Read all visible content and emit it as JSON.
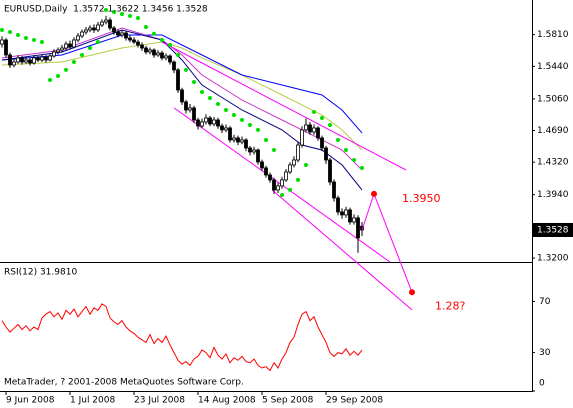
{
  "chart_data": {
    "type": "candlestick",
    "title": "EURUSD,Daily  1.3572 1.3622 1.3456 1.3528",
    "x": [
      0,
      1,
      2,
      3,
      4,
      5,
      6,
      7,
      8,
      9,
      10,
      11,
      12,
      13,
      14,
      15,
      16,
      17,
      18,
      19,
      20,
      21,
      22,
      23,
      24,
      25,
      26,
      27,
      28,
      29,
      30,
      31,
      32,
      33,
      34,
      35,
      36,
      37,
      38,
      39,
      40,
      41,
      42,
      43,
      44,
      45,
      46,
      47,
      48,
      49,
      50,
      51,
      52,
      53,
      54,
      55,
      56,
      57,
      58,
      59,
      60,
      61,
      62,
      63,
      64,
      65,
      66,
      67,
      68,
      69,
      70,
      71,
      72,
      73,
      74,
      75,
      76,
      77,
      78,
      79,
      80,
      81,
      82,
      83,
      84,
      85,
      86,
      87,
      88,
      89,
      90
    ],
    "open": [
      1.57,
      1.5748,
      1.5573,
      1.5456,
      1.5491,
      1.5538,
      1.5491,
      1.5514,
      1.5479,
      1.5538,
      1.5514,
      1.5549,
      1.5514,
      1.5561,
      1.5608,
      1.5631,
      1.5654,
      1.5701,
      1.5666,
      1.5748,
      1.5795,
      1.5841,
      1.5865,
      1.5888,
      1.5865,
      1.5923,
      1.5958,
      1.5981,
      1.5888,
      1.5841,
      1.5806,
      1.583,
      1.5771,
      1.5748,
      1.5724,
      1.5689,
      1.5654,
      1.5608,
      1.5631,
      1.5573,
      1.5596,
      1.5538,
      1.5561,
      1.5491,
      1.5398,
      1.5164,
      1.5024,
      1.493,
      1.4954,
      1.4813,
      1.4743,
      1.479,
      1.4837,
      1.4767,
      1.4813,
      1.4743,
      1.4697,
      1.472,
      1.458,
      1.4603,
      1.4556,
      1.458,
      1.4486,
      1.444,
      1.4463,
      1.4323,
      1.4253,
      1.4171,
      1.4113,
      1.3996,
      1.4043,
      1.4113,
      1.4206,
      1.4288,
      1.4346,
      1.4521,
      1.4697,
      1.4755,
      1.4673,
      1.472,
      1.4603,
      1.4486,
      1.4346,
      1.4089,
      1.3902,
      1.3739,
      1.3704,
      1.3762,
      1.3622,
      1.3669,
      1.3572
    ],
    "high": [
      1.579,
      1.577,
      1.56,
      1.553,
      1.557,
      1.556,
      1.555,
      1.554,
      1.557,
      1.556,
      1.558,
      1.557,
      1.559,
      1.564,
      1.566,
      1.569,
      1.573,
      1.574,
      1.578,
      1.583,
      1.587,
      1.59,
      1.592,
      1.593,
      1.596,
      1.599,
      1.603,
      1.601,
      1.591,
      1.587,
      1.586,
      1.585,
      1.58,
      1.578,
      1.575,
      1.572,
      1.568,
      1.566,
      1.565,
      1.563,
      1.562,
      1.559,
      1.558,
      1.551,
      1.542,
      1.519,
      1.505,
      1.5,
      1.498,
      1.484,
      1.483,
      1.488,
      1.486,
      1.485,
      1.484,
      1.477,
      1.476,
      1.474,
      1.464,
      1.463,
      1.462,
      1.46,
      1.451,
      1.45,
      1.448,
      1.435,
      1.428,
      1.42,
      1.414,
      1.408,
      1.415,
      1.424,
      1.432,
      1.439,
      1.456,
      1.474,
      1.483,
      1.479,
      1.476,
      1.474,
      1.463,
      1.451,
      1.437,
      1.412,
      1.393,
      1.378,
      1.38,
      1.379,
      1.371,
      1.37,
      1.3622
    ],
    "low": [
      1.566,
      1.554,
      1.542,
      1.543,
      1.547,
      1.546,
      1.547,
      1.545,
      1.546,
      1.549,
      1.549,
      1.548,
      1.55,
      1.554,
      1.558,
      1.56,
      1.563,
      1.564,
      1.565,
      1.572,
      1.577,
      1.581,
      1.584,
      1.583,
      1.584,
      1.59,
      1.593,
      1.586,
      1.581,
      1.578,
      1.578,
      1.574,
      1.572,
      1.57,
      1.566,
      1.562,
      1.558,
      1.558,
      1.554,
      1.555,
      1.551,
      1.551,
      1.546,
      1.536,
      1.513,
      1.499,
      1.489,
      1.49,
      1.478,
      1.47,
      1.472,
      1.476,
      1.474,
      1.474,
      1.471,
      1.466,
      1.467,
      1.455,
      1.455,
      1.452,
      1.453,
      1.445,
      1.44,
      1.441,
      1.429,
      1.422,
      1.414,
      1.408,
      1.395,
      1.396,
      1.401,
      1.409,
      1.418,
      1.426,
      1.432,
      1.449,
      1.467,
      1.464,
      1.464,
      1.457,
      1.445,
      1.43,
      1.405,
      1.386,
      1.37,
      1.366,
      1.367,
      1.359,
      1.359,
      1.326,
      1.3456
    ],
    "close": [
      1.5748,
      1.5573,
      1.5456,
      1.5491,
      1.5538,
      1.5491,
      1.5514,
      1.5479,
      1.5538,
      1.5514,
      1.5549,
      1.5514,
      1.5561,
      1.5608,
      1.5631,
      1.5654,
      1.5701,
      1.5666,
      1.5748,
      1.5795,
      1.5841,
      1.5865,
      1.5888,
      1.5865,
      1.5923,
      1.5958,
      1.5981,
      1.5888,
      1.5841,
      1.5806,
      1.583,
      1.5771,
      1.5748,
      1.5724,
      1.5689,
      1.5654,
      1.5608,
      1.5631,
      1.5573,
      1.5596,
      1.5538,
      1.5561,
      1.5491,
      1.5398,
      1.5164,
      1.5024,
      1.493,
      1.4954,
      1.4813,
      1.4743,
      1.479,
      1.4837,
      1.4767,
      1.4813,
      1.4743,
      1.4697,
      1.472,
      1.458,
      1.4603,
      1.4556,
      1.458,
      1.4486,
      1.444,
      1.4463,
      1.4323,
      1.4253,
      1.4171,
      1.4113,
      1.3996,
      1.4043,
      1.4113,
      1.4206,
      1.4288,
      1.4346,
      1.4521,
      1.4697,
      1.4755,
      1.4673,
      1.472,
      1.4603,
      1.4486,
      1.4346,
      1.4089,
      1.3902,
      1.3739,
      1.3704,
      1.3762,
      1.3622,
      1.3669,
      1.3435,
      1.3528
    ],
    "up_color": "#ffffff",
    "down_color": "#000000",
    "xlim": [
      -0.5,
      132.5
    ],
    "xticks": [
      {
        "value": 1,
        "label": "9 Jun 2008"
      },
      {
        "value": 17,
        "label": "1 Jul 2008"
      },
      {
        "value": 33,
        "label": "23 Jul 2008"
      },
      {
        "value": 49,
        "label": "14 Aug 2008"
      },
      {
        "value": 65,
        "label": "5 Sep 2008"
      },
      {
        "value": 81,
        "label": "29 Sep 2008"
      }
    ],
    "ylim": [
      1.3154,
      1.6215
    ],
    "yticks": [
      {
        "value": 1.32,
        "label": "1.3200"
      },
      {
        "value": 1.394,
        "label": "1.3940"
      },
      {
        "value": 1.432,
        "label": "1.4320"
      },
      {
        "value": 1.469,
        "label": "1.4690"
      },
      {
        "value": 1.506,
        "label": "1.5060"
      },
      {
        "value": 1.544,
        "label": "1.5440"
      },
      {
        "value": 1.581,
        "label": "1.5810"
      }
    ],
    "moving_averages": [
      {
        "color": "#b8cc44",
        "x": [
          0,
          15,
          30,
          40,
          45,
          50,
          60,
          70,
          75,
          80,
          85,
          90
        ],
        "values": [
          1.5456,
          1.5491,
          1.5654,
          1.5724,
          1.5654,
          1.5538,
          1.5339,
          1.5105,
          1.4989,
          1.4872,
          1.4697,
          1.4463
        ]
      },
      {
        "color": "#0000ff",
        "x": [
          0,
          15,
          30,
          40,
          50,
          60,
          70,
          80,
          85,
          90
        ],
        "values": [
          1.5514,
          1.5573,
          1.5806,
          1.5806,
          1.5573,
          1.5339,
          1.5222,
          1.5105,
          1.493,
          1.4662
        ]
      },
      {
        "color": "#cc33cc",
        "x": [
          0,
          15,
          30,
          40,
          45,
          50,
          60,
          70,
          75,
          80,
          85,
          90
        ],
        "values": [
          1.5538,
          1.5631,
          1.5888,
          1.5748,
          1.5573,
          1.5339,
          1.5047,
          1.4813,
          1.4697,
          1.458,
          1.4463,
          1.4229
        ]
      },
      {
        "color": "#000080",
        "x": [
          0,
          15,
          30,
          40,
          45,
          50,
          60,
          70,
          75,
          80,
          85,
          90
        ],
        "values": [
          1.5514,
          1.5608,
          1.5865,
          1.5748,
          1.5514,
          1.5222,
          1.493,
          1.4697,
          1.4521,
          1.4463,
          1.4288,
          1.3996
        ]
      }
    ],
    "sar": {
      "color": "#00dd00",
      "x": [
        0,
        2,
        4,
        6,
        8,
        10,
        12,
        14,
        16,
        18,
        20,
        22,
        24,
        26,
        28,
        30,
        32,
        34,
        36,
        38,
        40,
        42,
        44,
        46,
        48,
        50,
        52,
        54,
        56,
        58,
        60,
        62,
        64,
        66,
        68,
        70,
        72,
        74,
        76,
        78,
        80,
        82,
        84,
        86,
        88,
        90
      ],
      "values": [
        1.5865,
        1.5841,
        1.5806,
        1.5771,
        1.5748,
        1.5724,
        1.5281,
        1.5327,
        1.5398,
        1.5491,
        1.5573,
        1.5654,
        1.5724,
        1.6098,
        1.6075,
        1.6051,
        1.6028,
        1.6005,
        1.59,
        1.582,
        1.5748,
        1.5689,
        1.5573,
        1.5398,
        1.5257,
        1.514,
        1.507,
        1.5,
        1.493,
        1.4872,
        1.4813,
        1.4755,
        1.4697,
        1.458,
        1.4463,
        1.3937,
        1.3996,
        1.4113,
        1.4288,
        1.4907,
        1.4837,
        1.4755,
        1.458,
        1.4463,
        1.4346,
        1.4253
      ]
    },
    "trendlines": [
      {
        "color": "#ff00ff",
        "x": [
          40,
          101
        ],
        "values": [
          1.5724,
          1.4229
        ]
      },
      {
        "color": "#ff00ff",
        "x": [
          43,
          97
        ],
        "values": [
          1.4954,
          1.3154
        ]
      },
      {
        "color": "#ff00ff",
        "x": [
          67.5,
          102.5
        ],
        "values": [
          1.3996,
          1.2594
        ]
      }
    ],
    "forecast": {
      "color": "#ff00ff",
      "point_color": "#ff0000",
      "x": [
        93,
        102.5
      ],
      "values": [
        1.395,
        1.28
      ],
      "value_labels": [
        "1.3950",
        "1.28?"
      ]
    },
    "rsi": {
      "title": "RSI(12) 31.9810",
      "color": "#ff0000",
      "values": [
        55,
        50,
        46,
        49,
        52,
        48,
        51,
        47,
        50,
        48,
        57,
        60,
        62,
        58,
        61,
        56,
        63,
        60,
        64,
        58,
        62,
        66,
        60,
        65,
        63,
        68,
        66,
        57,
        54,
        52,
        55,
        50,
        47,
        45,
        42,
        40,
        38,
        44,
        37,
        41,
        38,
        43,
        36,
        30,
        24,
        21,
        23,
        20,
        25,
        27,
        32,
        30,
        26,
        34,
        28,
        25,
        29,
        22,
        26,
        24,
        27,
        23,
        22,
        25,
        20,
        18,
        19,
        16,
        22,
        18,
        25,
        30,
        38,
        42,
        52,
        60,
        62,
        55,
        58,
        50,
        44,
        38,
        30,
        27,
        30,
        29,
        33,
        28,
        31,
        28,
        31.981
      ],
      "ylim": [
        0,
        100
      ],
      "yticks": [
        0,
        30,
        70
      ]
    },
    "footer": "MetaTrader, ? 2001-2008 MetaQuotes Software Corp."
  }
}
